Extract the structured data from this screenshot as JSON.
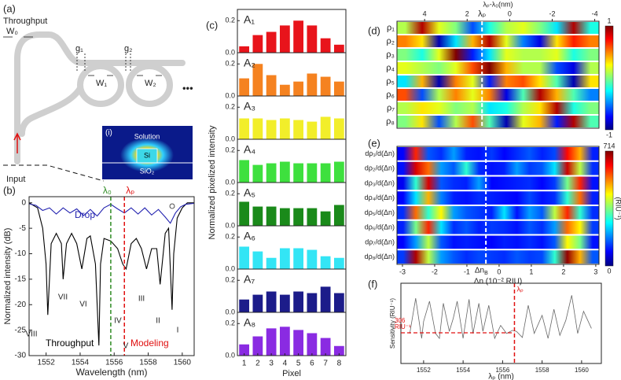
{
  "panel_a": {
    "label": "(a)",
    "throughput": "Throughput",
    "w0": "W₀",
    "g1": "g₁",
    "g2": "g₂",
    "w1": "W₁",
    "w2": "W₂",
    "ellipsis": "•••",
    "input": "Input",
    "inset": {
      "label": "(i)",
      "top": "Solution",
      "core": "Si",
      "bottom": "SiO₂"
    }
  },
  "chart_data": [
    {
      "type": "line",
      "label": "(b)",
      "xlabel": "Wavelength (nm)",
      "ylabel": "Normalized intensity (dB)",
      "xlim": [
        1551,
        1560.7
      ],
      "ylim": [
        -30,
        1.2
      ],
      "xticks": [
        1552,
        1554,
        1556,
        1558,
        1560
      ],
      "yticks": [
        0,
        -5,
        -10,
        -15,
        -20,
        -25,
        -30
      ],
      "series": [
        {
          "name": "Throughput",
          "color": "#000000",
          "x": [
            1551,
            1551.5,
            1551.8,
            1552.0,
            1552.1,
            1552.3,
            1552.6,
            1552.9,
            1553.0,
            1553.2,
            1553.5,
            1553.8,
            1554.1,
            1554.4,
            1554.6,
            1554.9,
            1555.1,
            1555.2,
            1555.4,
            1555.8,
            1556.2,
            1556.5,
            1556.7,
            1557.0,
            1557.3,
            1557.6,
            1557.9,
            1558.2,
            1558.5,
            1558.7,
            1559.0,
            1559.2,
            1559.4,
            1559.5,
            1559.7,
            1560.0,
            1560.3,
            1560.7
          ],
          "values": [
            0,
            -1,
            -5,
            -12,
            -22,
            -8,
            -6,
            -8,
            -15,
            -8,
            -6,
            -8,
            -13,
            -7,
            -6.5,
            -12,
            -28,
            -12,
            -7,
            -7.5,
            -9,
            -12,
            -13,
            -8,
            -7,
            -9,
            -13,
            -9,
            -9,
            -16,
            -6,
            -5,
            -21,
            -10,
            -3,
            -1,
            0,
            0
          ]
        },
        {
          "name": "Drop",
          "color": "#2323b0",
          "x": [
            1551,
            1551.4,
            1551.8,
            1552.2,
            1552.6,
            1553.0,
            1553.4,
            1553.8,
            1554.2,
            1554.6,
            1555.0,
            1555.4,
            1555.8,
            1556.2,
            1556.6,
            1557.0,
            1557.4,
            1557.8,
            1558.2,
            1558.6,
            1559.0,
            1559.3,
            1559.6,
            1559.9,
            1560.2,
            1560.7
          ],
          "values": [
            -0.2,
            -0.5,
            -1.5,
            -1,
            -2.2,
            -1,
            -2,
            -1.2,
            -2.5,
            -1.3,
            -2.6,
            -1,
            -0.3,
            -1.2,
            -2,
            -1,
            -2.2,
            -1,
            -2.4,
            -1.3,
            -2.8,
            -4,
            -2,
            -0.8,
            -0.3,
            -0.1
          ]
        }
      ],
      "markers": [
        {
          "label": "λ₀",
          "x": 1555.8,
          "color": "#2e8b22"
        },
        {
          "label": "λₚ",
          "x": 1556.6,
          "color": "#e01010"
        }
      ],
      "annotation": {
        "text": "Modeling",
        "color": "#e01010"
      },
      "resonance_labels": [
        "I",
        "II",
        "III",
        "IV",
        "V",
        "VI",
        "VII",
        "VIII"
      ]
    },
    {
      "type": "bar",
      "label": "(c)",
      "facet": true,
      "xlabel": "Pixel",
      "ylabel": "Normalized pixelized intensity",
      "categories": [
        "1",
        "2",
        "3",
        "4",
        "5",
        "6",
        "7",
        "8"
      ],
      "ylim": [
        0,
        0.27
      ],
      "yticks": [
        {
          "value": 0,
          "label": "0.0"
        },
        0.2
      ],
      "series": [
        {
          "name": "A₁",
          "color": "#e8141b",
          "values": [
            0.04,
            0.11,
            0.13,
            0.17,
            0.2,
            0.17,
            0.09,
            0.05
          ]
        },
        {
          "name": "A₂",
          "color": "#f58220",
          "values": [
            0.11,
            0.2,
            0.13,
            0.07,
            0.09,
            0.14,
            0.12,
            0.09
          ]
        },
        {
          "name": "A₃",
          "color": "#f2ee2a",
          "values": [
            0.13,
            0.13,
            0.12,
            0.13,
            0.12,
            0.11,
            0.14,
            0.13
          ]
        },
        {
          "name": "A₄",
          "color": "#3ee03e",
          "values": [
            0.14,
            0.11,
            0.12,
            0.13,
            0.12,
            0.12,
            0.12,
            0.13
          ]
        },
        {
          "name": "A₅",
          "color": "#1a8a1a",
          "values": [
            0.15,
            0.12,
            0.12,
            0.11,
            0.11,
            0.11,
            0.09,
            0.13
          ]
        },
        {
          "name": "A₆",
          "color": "#33e5f5",
          "values": [
            0.14,
            0.11,
            0.07,
            0.13,
            0.13,
            0.12,
            0.08,
            0.07
          ]
        },
        {
          "name": "A₇",
          "color": "#1c1c8a",
          "values": [
            0.08,
            0.11,
            0.13,
            0.11,
            0.13,
            0.12,
            0.16,
            0.12
          ]
        },
        {
          "name": "A₈",
          "color": "#8a2be2",
          "values": [
            0.07,
            0.12,
            0.17,
            0.18,
            0.16,
            0.14,
            0.11,
            0.06
          ]
        }
      ]
    },
    {
      "type": "heatmap",
      "label": "(d)",
      "xlabel": "λₚ-λ₀(nm)",
      "axis_side": "top",
      "xlim": [
        5.3,
        -4.2
      ],
      "xticks": [
        4,
        2,
        0,
        -2,
        -4
      ],
      "rows": [
        "ρ₁",
        "ρ₂",
        "ρ₃",
        "ρ₄",
        "ρ₅",
        "ρ₆",
        "ρ₇",
        "ρ₈"
      ],
      "values": [
        [
          0.1,
          0.9,
          0.2,
          0,
          -0.6,
          -0.2,
          0.1,
          0.2,
          0,
          -0.3,
          0.9,
          -0.2
        ],
        [
          0.5,
          0.3,
          -0.9,
          -0.3,
          0.4,
          0.9,
          0.2,
          -0.5,
          -0.8,
          0.3,
          0.7,
          0.5
        ],
        [
          0,
          -0.2,
          0.2,
          1,
          -0.7,
          -0.3,
          0.2,
          0.1,
          0.1,
          0.2,
          -0.2,
          0
        ],
        [
          0.2,
          0.1,
          0,
          0.2,
          0.6,
          1,
          0.4,
          0.1,
          0.1,
          -0.6,
          -0.8,
          0.1
        ],
        [
          -0.3,
          0.4,
          -0.9,
          0.5,
          0.2,
          -0.7,
          0.5,
          0.6,
          0.3,
          -0.1,
          -0.9,
          0.3
        ],
        [
          0.6,
          -0.6,
          0.1,
          0.5,
          0.2,
          0.5,
          -0.8,
          -0.1,
          0.9,
          0.4,
          -0.1,
          -0.5
        ],
        [
          0.1,
          0.3,
          0.2,
          0,
          0.1,
          -0.3,
          -0.2,
          0.1,
          0.3,
          0.9,
          -0.2,
          0
        ],
        [
          0,
          0.3,
          -0.6,
          0.1,
          0.6,
          -0.1,
          -0.9,
          0.2,
          0.4,
          -0.7,
          0.9,
          -0.1
        ]
      ],
      "colorbar": {
        "lim": [
          -1,
          1
        ],
        "ticks": [
          1,
          -1
        ]
      },
      "marker": {
        "label": "λₚ",
        "x": 1.3
      }
    },
    {
      "type": "heatmap",
      "label": "(e)",
      "xlabel": "Δn (10⁻² RIU)",
      "axis_side": "bottom",
      "xlim": [
        -3.17,
        3.1
      ],
      "xticks": [
        -3,
        -2,
        -1,
        0,
        1,
        2,
        3
      ],
      "rows": [
        "dρ₁/d(Δn)",
        "dρ₂/d(Δn)",
        "dρ₃/d(Δn)",
        "dρ₄/d(Δn)",
        "dρ₅/d(Δn)",
        "dρ₆/d(Δn)",
        "dρ₇/d(Δn)",
        "dρ₈/d(Δn)"
      ],
      "values": [
        [
          90,
          600,
          150,
          120,
          200,
          110,
          100,
          130,
          90,
          120,
          150,
          110,
          140,
          620,
          500,
          110
        ],
        [
          100,
          650,
          550,
          200,
          150,
          300,
          120,
          100,
          110,
          200,
          130,
          150,
          250,
          660,
          400,
          120
        ],
        [
          80,
          300,
          650,
          150,
          120,
          110,
          200,
          90,
          100,
          110,
          120,
          90,
          130,
          350,
          600,
          100
        ],
        [
          90,
          250,
          500,
          180,
          110,
          100,
          120,
          110,
          100,
          90,
          140,
          100,
          120,
          300,
          550,
          110
        ],
        [
          120,
          550,
          300,
          450,
          200,
          150,
          130,
          110,
          250,
          100,
          200,
          150,
          400,
          600,
          300,
          120
        ],
        [
          110,
          350,
          600,
          250,
          120,
          150,
          110,
          130,
          120,
          100,
          150,
          120,
          200,
          550,
          450,
          130
        ],
        [
          90,
          200,
          400,
          150,
          100,
          110,
          100,
          90,
          110,
          100,
          120,
          100,
          150,
          450,
          350,
          100
        ],
        [
          130,
          680,
          400,
          200,
          150,
          120,
          140,
          130,
          120,
          150,
          130,
          140,
          300,
          700,
          500,
          150
        ]
      ],
      "colorbar": {
        "lim": [
          0,
          714
        ],
        "ticks": [
          714,
          0
        ],
        "unit": "(RIU⁻¹)"
      },
      "marker": {
        "label": "Δn",
        "sub": "B",
        "x": -0.41
      }
    },
    {
      "type": "line",
      "label": "(f)",
      "xlabel": "λₚ (nm)",
      "ylabel": "Sensitivity (RIU⁻¹)",
      "xlim": [
        1550.85,
        1561
      ],
      "ylim": [
        0,
        800
      ],
      "xticks": [
        1552,
        1554,
        1556,
        1558,
        1560
      ],
      "series": [
        {
          "color": "#666666",
          "x": [
            1551.3,
            1551.6,
            1551.9,
            1552.0,
            1552.3,
            1552.6,
            1552.8,
            1553.0,
            1553.3,
            1553.5,
            1553.7,
            1554.0,
            1554.3,
            1554.5,
            1554.8,
            1555.0,
            1555.3,
            1555.6,
            1555.9,
            1556.2,
            1556.5,
            1556.7,
            1557.0,
            1557.3,
            1557.6,
            1558.0,
            1558.3,
            1558.6,
            1558.9,
            1559.2,
            1559.5,
            1559.8,
            1560.1,
            1560.5
          ],
          "values": [
            300,
            650,
            250,
            420,
            620,
            300,
            250,
            600,
            320,
            450,
            620,
            250,
            640,
            300,
            600,
            320,
            580,
            250,
            380,
            300,
            330,
            320,
            260,
            580,
            300,
            480,
            250,
            540,
            280,
            430,
            680,
            300,
            520,
            350
          ]
        }
      ],
      "reference": {
        "value": 306,
        "unit": "RIU⁻¹",
        "color": "#e01010"
      },
      "markers": [
        {
          "label": "λₚ",
          "x": 1556.6,
          "color": "#e01010"
        }
      ]
    }
  ]
}
